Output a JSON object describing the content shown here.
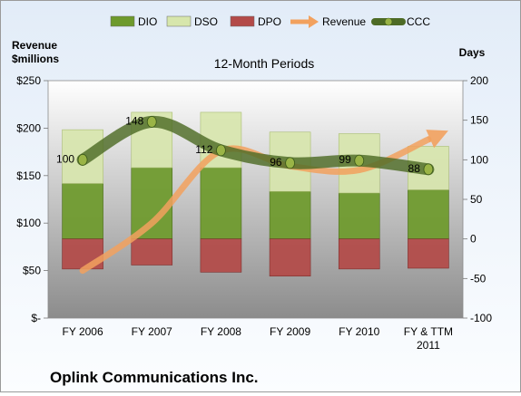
{
  "chart_data": {
    "type": "bar",
    "title": "12-Month Periods",
    "company": "Oplink Communications Inc.",
    "left_axis": {
      "title_lines": [
        "Revenue",
        "$millions"
      ],
      "range": [
        0,
        250
      ],
      "tick_values": [
        0,
        50,
        100,
        150,
        200,
        250
      ],
      "tick_labels": [
        "$-",
        "$50",
        "$100",
        "$150",
        "$200",
        "$250"
      ]
    },
    "right_axis": {
      "title": "Days",
      "range": [
        -100,
        200
      ],
      "tick_values": [
        -100,
        -50,
        0,
        50,
        100,
        150,
        200
      ],
      "tick_labels": [
        "-100",
        "-50",
        "0",
        "50",
        "100",
        "150",
        "200"
      ]
    },
    "categories": [
      [
        "FY 2006"
      ],
      [
        "FY 2007"
      ],
      [
        "FY 2008"
      ],
      [
        "FY 2009"
      ],
      [
        "FY 2010"
      ],
      [
        "FY & TTM",
        "2011"
      ]
    ],
    "series": [
      {
        "name": "DIO",
        "type": "stacked-bar",
        "axis": "right",
        "color": "#6e9a2c",
        "values": [
          70,
          90,
          90,
          60,
          58,
          62
        ]
      },
      {
        "name": "DSO",
        "type": "stacked-bar",
        "axis": "right",
        "color": "#d7e6ac",
        "values": [
          68,
          70,
          70,
          75,
          75,
          55
        ]
      },
      {
        "name": "DPO",
        "type": "negative-bar",
        "axis": "right",
        "color": "#b34a48",
        "values": [
          -38,
          -33,
          -42,
          -47,
          -38,
          -37
        ]
      },
      {
        "name": "Revenue",
        "type": "line",
        "axis": "left",
        "color": "#f2a15e",
        "values": [
          50,
          100,
          176,
          160,
          156,
          188
        ]
      },
      {
        "name": "CCC",
        "type": "line",
        "axis": "right",
        "color": "#4e6b26",
        "values": [
          100,
          148,
          112,
          96,
          99,
          88
        ]
      }
    ],
    "ccc_labels": [
      "100",
      "148",
      "112",
      "96",
      "99",
      "88"
    ],
    "legend_position": "top",
    "grid": false
  },
  "colors": {
    "plot_bg": "#8e8e8e",
    "marker": "#9ab446"
  }
}
